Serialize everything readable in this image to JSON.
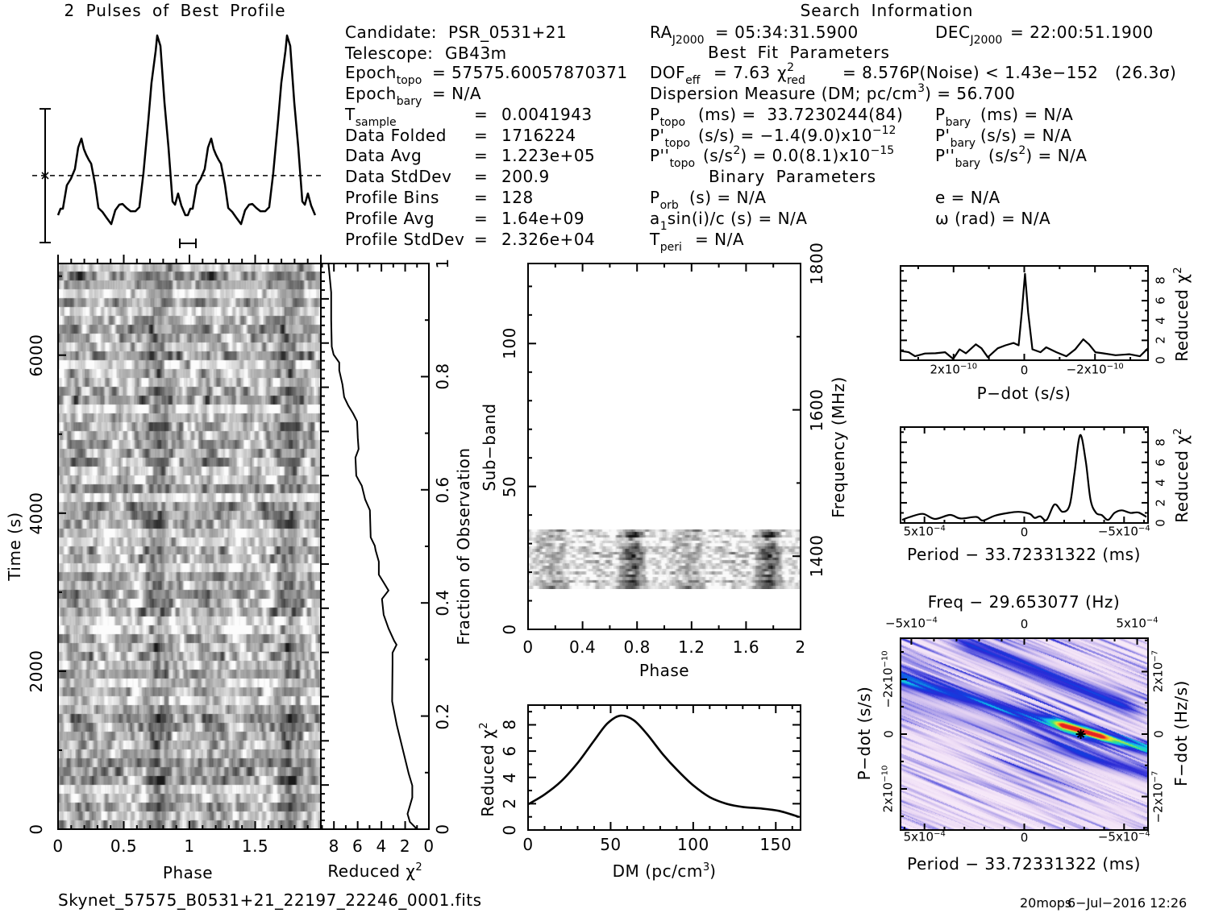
{
  "candidate": {
    "candidate_label": "Candidate:",
    "candidate_value": "PSR_0531+21",
    "telescope_label": "Telescope:",
    "telescope_value": "GB43m",
    "epoch_topo": {
      "label": "Epoch",
      "sub": "topo",
      "value": "= 57575.60057870371"
    },
    "epoch_bary": {
      "label": "Epoch",
      "sub": "bary",
      "value": "= N/A"
    },
    "stats": [
      {
        "label": "T",
        "sub": "sample",
        "eq": "=",
        "value": "0.0041943"
      },
      {
        "label": "Data Folded",
        "eq": "=",
        "value": "1716224"
      },
      {
        "label": "Data Avg",
        "eq": "=",
        "value": "1.223e+05"
      },
      {
        "label": "Data StdDev",
        "eq": "=",
        "value": "200.9"
      },
      {
        "label": "Profile Bins",
        "eq": "=",
        "value": "128"
      },
      {
        "label": "Profile Avg",
        "eq": "=",
        "value": "1.64e+09"
      },
      {
        "label": "Profile StdDev",
        "eq": "=",
        "value": "2.326e+04"
      }
    ]
  },
  "search": {
    "title": "Search Information",
    "ra": {
      "label": "RA",
      "sub": "J2000",
      "value": "= 05:34:31.5900"
    },
    "dec": {
      "label": "DEC",
      "sub": "J2000",
      "value": "= 22:00:51.1900"
    },
    "best_fit_title": "Best Fit Parameters",
    "dof": {
      "label": "DOF",
      "sub": "eff",
      "value": "= 7.63"
    },
    "chi2_red": {
      "label": "χ",
      "sup": "2",
      "sub": "red",
      "value": "= 8.576"
    },
    "p_noise": "P(Noise) < 1.43e−152",
    "sigma": "(26.3σ)",
    "dm": {
      "label": "Dispersion Measure (DM; pc/cm",
      "sup": "3",
      "value": ") = 56.700"
    },
    "p_topo": {
      "label": "P",
      "sub": "topo",
      "value": "(ms) =  33.7230244(84)"
    },
    "p_bary": {
      "label": "P",
      "sub": "bary",
      "value": "(ms) = N/A"
    },
    "pd_topo": {
      "label": "P'",
      "sub": "topo",
      "value": "(s/s) = −1.4(9.0)x10",
      "sup": "−12"
    },
    "pd_bary": {
      "label": "P'",
      "sub": "bary",
      "value": "(s/s) = N/A"
    },
    "pdd_topo": {
      "label": "P''",
      "sub": "topo",
      "value": "(s/s",
      "sup": "2",
      "value2": ") = 0.0(8.1)x10",
      "sup2": "−15"
    },
    "pdd_bary": {
      "label": "P''",
      "sub": "bary",
      "value": "(s/s",
      "sup": "2",
      "value2": ") = N/A"
    },
    "binary_title": "Binary Parameters",
    "p_orb": {
      "label": "P",
      "sub": "orb",
      "value": "(s) = N/A"
    },
    "ecc": "e = N/A",
    "a1sini": {
      "label": "a",
      "sub": "1",
      "value": "sin(i)/c (s) = N/A"
    },
    "omega": "ω (rad) = N/A",
    "t_peri": {
      "label": "T",
      "sub": "peri",
      "value": "= N/A"
    }
  },
  "footer": {
    "filename": "Skynet_57575_B0531+21_22197_22246_0001.fits",
    "user": "20mops",
    "timestamp": "6−Jul−2016 12:26"
  },
  "chart_data": [
    {
      "type": "line",
      "title": "2 Pulses of Best Profile",
      "xlabel": "",
      "ylabel": "",
      "xlim": [
        0,
        2
      ],
      "ylim": [
        0,
        1
      ],
      "repeat": 2,
      "phase": [
        0.0,
        0.019,
        0.037,
        0.068,
        0.099,
        0.13,
        0.155,
        0.18,
        0.199,
        0.217,
        0.236,
        0.255,
        0.286,
        0.311,
        0.342,
        0.373,
        0.41,
        0.441,
        0.472,
        0.497,
        0.528,
        0.559,
        0.596,
        0.627,
        0.658,
        0.696,
        0.72,
        0.752,
        0.764,
        0.789,
        0.82,
        0.851,
        0.882,
        0.901,
        0.925,
        0.95,
        0.981
      ],
      "intensity": [
        0.055,
        0.089,
        0.089,
        0.212,
        0.246,
        0.297,
        0.411,
        0.458,
        0.403,
        0.373,
        0.347,
        0.326,
        0.216,
        0.093,
        0.072,
        0.042,
        0.008,
        0.081,
        0.11,
        0.114,
        0.093,
        0.076,
        0.076,
        0.097,
        0.275,
        0.559,
        0.75,
        0.919,
        1.0,
        0.945,
        0.648,
        0.411,
        0.127,
        0.11,
        0.169,
        0.106,
        0.055
      ],
      "mean_level": 0.263,
      "sigma_bar": [
        -0.089,
        0.614
      ],
      "phase_bar": [
        0.938,
        1.062
      ]
    },
    {
      "type": "heatmap",
      "xlabel": "Phase",
      "ylabel": "Time (s)",
      "xlim": [
        0,
        2
      ],
      "ylim": [
        0,
        7160
      ],
      "xticks": {
        "values": [
          0,
          0.5,
          1,
          1.5
        ],
        "labels": [
          "0",
          "0.5",
          "1",
          "1.5"
        ]
      },
      "yticks": {
        "values": [
          0,
          2000,
          4000,
          6000
        ],
        "labels": [
          "0",
          "2000",
          "4000",
          "6000"
        ]
      },
      "pulse_phases": [
        0.18,
        0.764
      ]
    },
    {
      "type": "line",
      "xlabel": {
        "text": "Reduced χ",
        "sup": "2"
      },
      "ylabel": "Fraction of Observation",
      "xlim": [
        9.1,
        0
      ],
      "ylim": [
        0,
        1
      ],
      "xticks": {
        "values": [
          8,
          6,
          4,
          2,
          0
        ],
        "labels": [
          "8",
          "6",
          "4",
          "2",
          "0"
        ]
      },
      "yticks": {
        "values": [
          0,
          0.2,
          0.4,
          0.6,
          0.8,
          1
        ],
        "labels": [
          "0",
          "0.2",
          "0.4",
          "0.6",
          "0.8",
          "1"
        ]
      },
      "x": [
        8.46,
        8.23,
        8.23,
        8.18,
        8.03,
        7.55,
        7.55,
        7.28,
        7.14,
        6.8,
        6.39,
        6.05,
        5.99,
        5.92,
        6.19,
        6.12,
        5.65,
        5.37,
        4.97,
        4.9,
        4.56,
        4.49,
        4.22,
        4.22,
        3.81,
        3.4,
        3.95,
        3.81,
        3.4,
        2.93,
        2.72,
        3.06,
        3.06,
        3.1,
        2.7,
        2.2,
        1.7,
        1.4,
        1.4,
        1.8,
        1.6,
        1.0
      ],
      "y": [
        1.0,
        0.949,
        0.9,
        0.853,
        0.839,
        0.825,
        0.811,
        0.786,
        0.764,
        0.749,
        0.735,
        0.721,
        0.692,
        0.672,
        0.657,
        0.625,
        0.607,
        0.583,
        0.564,
        0.516,
        0.501,
        0.493,
        0.473,
        0.45,
        0.436,
        0.422,
        0.407,
        0.379,
        0.355,
        0.333,
        0.326,
        0.312,
        0.293,
        0.226,
        0.184,
        0.141,
        0.098,
        0.077,
        0.056,
        0.027,
        0.013,
        0.0
      ]
    },
    {
      "type": "heatmap",
      "xlabel": "Phase",
      "ylabel": "Sub−band",
      "y2label": "Frequency (MHz)",
      "xlim": [
        0,
        2
      ],
      "ylim": [
        0,
        128
      ],
      "y2lim": [
        1300,
        1800
      ],
      "xticks": {
        "values": [
          0,
          0.4,
          0.8,
          1.2,
          1.6,
          2
        ],
        "labels": [
          "0",
          "0.4",
          "0.8",
          "1.2",
          "1.6",
          "2"
        ]
      },
      "yticks": {
        "values": [
          0,
          50,
          100
        ],
        "labels": [
          "0",
          "50",
          "100"
        ]
      },
      "y2ticks": {
        "values": [
          1400,
          1600,
          1800
        ],
        "labels": [
          "1400",
          "1600",
          "1800"
        ]
      },
      "active_subbands": [
        14,
        35
      ],
      "pulse_phases": [
        0.18,
        0.764
      ]
    },
    {
      "type": "line",
      "xlabel": {
        "text": "DM (pc/cm",
        "sup": "3",
        "tail": ")"
      },
      "ylabel": {
        "text": "Reduced χ",
        "sup": "2"
      },
      "xlim": [
        0,
        165
      ],
      "ylim": [
        0,
        9.5
      ],
      "xticks": {
        "values": [
          0,
          50,
          100,
          150
        ],
        "labels": [
          "0",
          "50",
          "100",
          "150"
        ]
      },
      "yticks": {
        "values": [
          0,
          2,
          4,
          6,
          8
        ],
        "labels": [
          "0",
          "2",
          "4",
          "6",
          "8"
        ]
      },
      "x": [
        0,
        10,
        20,
        30,
        40,
        48,
        56,
        64,
        72,
        82,
        90,
        100,
        110,
        120,
        130,
        140,
        152,
        164
      ],
      "y": [
        1.95,
        2.7,
        3.7,
        5.1,
        6.8,
        8.1,
        8.7,
        8.35,
        7.3,
        5.7,
        4.6,
        3.4,
        2.5,
        2.0,
        1.75,
        1.65,
        1.45,
        1.0
      ]
    },
    {
      "type": "line",
      "xlabel": "P−dot (s/s)",
      "y2label": {
        "text": "Reduced χ",
        "sup": "2"
      },
      "xlim": [
        3.5e-10,
        -3.5e-10
      ],
      "ylim": [
        0,
        9.5
      ],
      "xticks": {
        "values": [
          2e-10,
          0,
          -2e-10
        ],
        "labels": [
          {
            "base": "2x10",
            "exp": "−10"
          },
          "0",
          {
            "base": "−2x10",
            "exp": "−10"
          }
        ]
      },
      "y2ticks": {
        "values": [
          0,
          2,
          4,
          6,
          8
        ],
        "labels": [
          "0",
          "2",
          "4",
          "6",
          "8"
        ]
      },
      "x": [
        3.5e-10,
        3.27e-10,
        3.09e-10,
        2.81e-10,
        2.51e-10,
        2.24e-10,
        2.01e-10,
        1.83e-10,
        1.65e-10,
        1.37e-10,
        1.21e-10,
        1.03e-10,
        7.5e-11,
        5.3e-11,
        3e-11,
        1.6e-11,
        7e-12,
        -2e-12,
        -1.1e-11,
        -2.3e-11,
        -4.6e-11,
        -6.2e-11,
        -9.1e-11,
        -1.19e-10,
        -1.44e-10,
        -1.67e-10,
        -1.83e-10,
        -2.01e-10,
        -2.22e-10,
        -2.58e-10,
        -2.97e-10,
        -3.27e-10,
        -3.5e-10
      ],
      "y": [
        0.94,
        0.8,
        0.4,
        0.67,
        0.7,
        0.8,
        0.13,
        1.1,
        0.7,
        1.6,
        1.2,
        0.3,
        1.2,
        1.5,
        1.74,
        1.5,
        4.8,
        8.7,
        4.8,
        1.1,
        0.8,
        1.3,
        0.8,
        0.4,
        1.1,
        2.1,
        1.6,
        0.8,
        0.7,
        0.5,
        0.6,
        0.4,
        1.2
      ]
    },
    {
      "type": "line",
      "xlabel": "Period − 33.72331322 (ms)",
      "y2label": {
        "text": "Reduced χ",
        "sup": "2"
      },
      "xlim": [
        0.00062,
        -0.00062
      ],
      "ylim": [
        0,
        9.5
      ],
      "xticks": {
        "values": [
          0.0005,
          0,
          -0.0005
        ],
        "labels": [
          {
            "base": "5x10",
            "exp": "−4"
          },
          "0",
          {
            "base": "−5x10",
            "exp": "−4"
          }
        ]
      },
      "y2ticks": {
        "values": [
          0,
          2,
          4,
          6,
          8
        ],
        "labels": [
          "0",
          "2",
          "4",
          "6",
          "8"
        ]
      },
      "x": [
        0.000612,
        0.000572,
        0.000508,
        0.000448,
        0.000372,
        0.00032,
        0.00024,
        0.000208,
        0.000148,
        8e-05,
        2.8e-05,
        -2.8e-05,
        -5.2e-05,
        -8e-05,
        -0.000112,
        -0.000152,
        -0.000192,
        -0.000228,
        -0.000252,
        -0.00028,
        -0.000308,
        -0.000332,
        -0.00036,
        -0.000388,
        -0.00042,
        -0.000452,
        -0.000488,
        -0.000532,
        -0.000572,
        -0.000612
      ],
      "y": [
        0.3,
        0.6,
        0.9,
        0.4,
        0.8,
        0.45,
        0.6,
        0.24,
        0.72,
        1.0,
        1.1,
        0.9,
        0.5,
        0.66,
        0.3,
        1.84,
        1.1,
        1.8,
        5.0,
        8.7,
        6.1,
        2.3,
        1.0,
        0.78,
        0.3,
        1.0,
        1.25,
        1.0,
        1.04,
        0.6
      ]
    },
    {
      "type": "heatmap",
      "title": "Freq − 29.653077 (Hz)",
      "xlabel": "Period − 33.72331322 (ms)",
      "ylabel": "P−dot (s/s)",
      "y2label": "F−dot (Hz/s)",
      "xlim": [
        0.00062,
        -0.00062
      ],
      "ylim": [
        3.5e-10,
        -3.5e-10
      ],
      "x2lim": [
        -0.000548,
        0.000548
      ],
      "y2lim": [
        -3.07e-07,
        3.07e-07
      ],
      "xticks": {
        "values": [
          0.0005,
          0,
          -0.0005
        ],
        "labels": [
          {
            "base": "5x10",
            "exp": "−4"
          },
          "0",
          {
            "base": "−5x10",
            "exp": "−4"
          }
        ]
      },
      "yticks": {
        "values": [
          -2e-10,
          0,
          2e-10
        ],
        "labels": [
          {
            "base": "−2x10",
            "exp": "−10"
          },
          "0",
          {
            "base": "2x10",
            "exp": "−10"
          }
        ]
      },
      "x2ticks": {
        "values": [
          -0.0005,
          0,
          0.0005
        ],
        "labels": [
          {
            "base": "−5x10",
            "exp": "−4"
          },
          "0",
          {
            "base": "5x10",
            "exp": "−4"
          }
        ]
      },
      "y2ticks": {
        "values": [
          2e-07,
          0,
          -2e-07
        ],
        "labels": [
          {
            "base": "2x10",
            "exp": "−7"
          },
          "0",
          {
            "base": "−2x10",
            "exp": "−7"
          }
        ]
      },
      "peak": {
        "period_offset": -0.000283,
        "pdot": 0
      },
      "colormap": [
        "#fcf0fb",
        "#ead8f4",
        "#b4a6ea",
        "#6e6ae2",
        "#2a2ad6",
        "#1040e0",
        "#10c8e8",
        "#3ce47a",
        "#e8e830",
        "#ff8a1e",
        "#e42222"
      ]
    }
  ]
}
